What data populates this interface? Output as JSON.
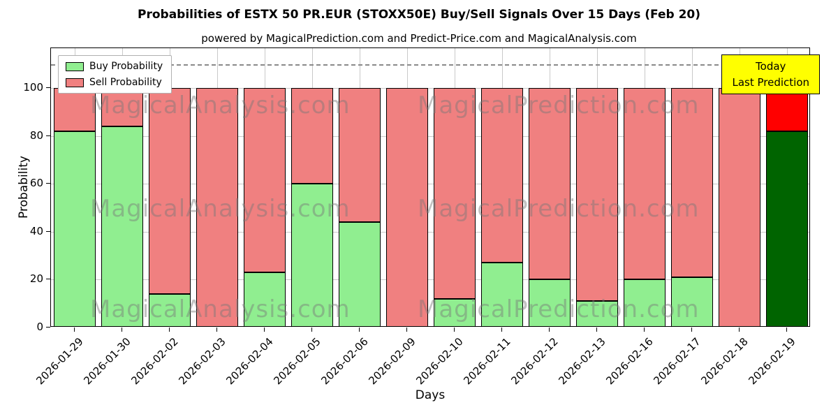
{
  "title": "Probabilities of ESTX 50 PR.EUR (STOXX50E) Buy/Sell Signals Over 15 Days (Feb 20)",
  "subtitle": "powered by MagicalPrediction.com and Predict-Price.com and MagicalAnalysis.com",
  "legend": {
    "buy": "Buy Probability",
    "sell": "Sell Probability"
  },
  "annotation": {
    "line1": "Today",
    "line2": "Last Prediction"
  },
  "watermarks": [
    "MagicalAnalysis.com",
    "MagicalPrediction.com"
  ],
  "colors": {
    "buy": "#90ee90",
    "sell": "#f08080",
    "today_buy": "#006400",
    "today_sell": "#ff0000",
    "bar_edge": "#000000",
    "annotation_bg": "#ffff00",
    "grid": "#c9c9c9",
    "dashed_line": "#8a8a8a"
  },
  "chart_data": {
    "type": "bar",
    "stacked": true,
    "title": "Probabilities of ESTX 50 PR.EUR (STOXX50E) Buy/Sell Signals Over 15 Days (Feb 20)",
    "xlabel": "Days",
    "ylabel": "Probability",
    "ylim": [
      0,
      116.6
    ],
    "yticks": [
      0,
      20,
      40,
      60,
      80,
      100
    ],
    "dashed_line_y": 110,
    "grid": true,
    "legend_position": "upper left",
    "categories": [
      "2026-01-29",
      "2026-01-30",
      "2026-02-02",
      "2026-02-03",
      "2026-02-04",
      "2026-02-05",
      "2026-02-06",
      "2026-02-09",
      "2026-02-10",
      "2026-02-11",
      "2026-02-12",
      "2026-02-13",
      "2026-02-16",
      "2026-02-17",
      "2026-02-18",
      "2026-02-19"
    ],
    "series": [
      {
        "name": "Buy Probability",
        "values": [
          82,
          84,
          14,
          0,
          23,
          60,
          44,
          0,
          12,
          27,
          20,
          11,
          20,
          21,
          0,
          82
        ]
      },
      {
        "name": "Sell Probability",
        "values": [
          18,
          16,
          86,
          100,
          77,
          40,
          56,
          100,
          88,
          73,
          80,
          89,
          80,
          79,
          100,
          18
        ]
      }
    ]
  }
}
